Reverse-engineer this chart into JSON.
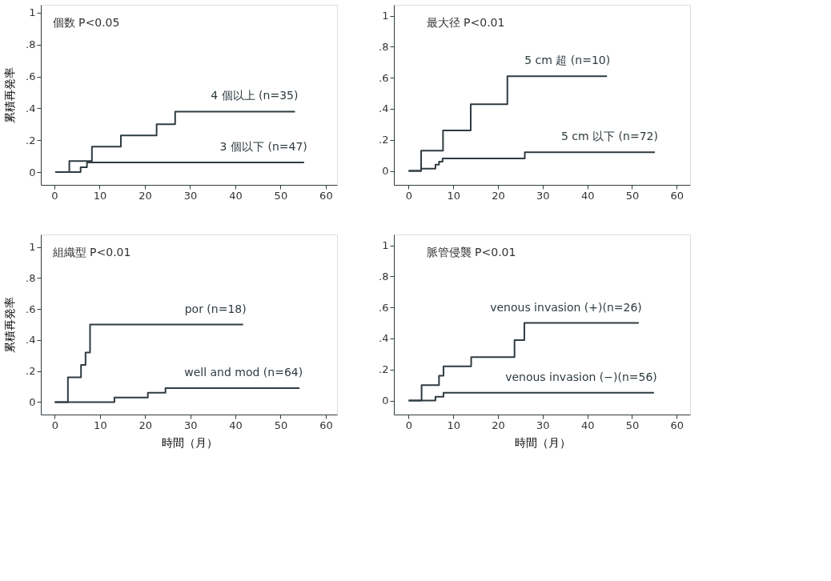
{
  "chart_data": [
    {
      "type": "step",
      "title": "個数  P<0.05",
      "ylabel": "累積再発率",
      "xlim": [
        -3,
        62.5
      ],
      "ylim": [
        -0.08,
        1.05
      ],
      "xticks": [
        0,
        10,
        20,
        30,
        40,
        50,
        60
      ],
      "yticks": [
        0,
        {
          "value": 0.2,
          "label": ".2"
        },
        {
          "value": 0.4,
          "label": ".4"
        },
        {
          "value": 0.6,
          "label": ".6"
        },
        {
          "value": 0.8,
          "label": ".8"
        },
        1
      ],
      "grid": false,
      "legend": false,
      "marker": "none",
      "series": [
        {
          "name": "4 個以上 (n=35)",
          "color": "#2f3b40",
          "x": [
            0.2,
            3.3,
            8.3,
            14.7,
            22.6,
            26.7,
            53.2
          ],
          "values": [
            0,
            0.07,
            0.16,
            0.23,
            0.3,
            0.38,
            0.38
          ]
        },
        {
          "name": "3 個以下 (n=47)",
          "color": "#2f3b40",
          "x": [
            0.2,
            5.8,
            7.2,
            55.2
          ],
          "values": [
            0,
            0.03,
            0.06,
            0.06
          ]
        }
      ]
    },
    {
      "type": "step",
      "title": "最大径  P<0.01",
      "xlim": [
        -3.3,
        63
      ],
      "ylim": [
        -0.09,
        1.07
      ],
      "xticks": [
        0,
        10,
        20,
        30,
        40,
        50,
        60
      ],
      "yticks": [
        0,
        {
          "value": 0.2,
          "label": ".2"
        },
        {
          "value": 0.4,
          "label": ".4"
        },
        {
          "value": 0.6,
          "label": ".6"
        },
        {
          "value": 0.8,
          "label": ".8"
        },
        1
      ],
      "grid": false,
      "legend": false,
      "marker": "none",
      "series": [
        {
          "name": "5 cm 超 (n=10)",
          "color": "#2f3b40",
          "x": [
            0,
            2.8,
            7.7,
            13.9,
            22.1,
            44.4
          ],
          "values": [
            0,
            0.13,
            0.26,
            0.43,
            0.61,
            0.61
          ]
        },
        {
          "name": "5 cm 以下 (n=72)",
          "color": "#2f3b40",
          "x": [
            0,
            2.8,
            6.0,
            6.8,
            7.6,
            26.0,
            55.1
          ],
          "values": [
            0,
            0.015,
            0.04,
            0.06,
            0.08,
            0.12,
            0.12
          ]
        }
      ]
    },
    {
      "type": "step",
      "title": "組織型  P<0.01",
      "ylabel": "累積再発率",
      "xlabel": "時間（月）",
      "xlim": [
        -3.1,
        62.5
      ],
      "ylim": [
        -0.08,
        1.08
      ],
      "xticks": [
        0,
        10,
        20,
        30,
        40,
        50,
        60
      ],
      "yticks": [
        0,
        {
          "value": 0.2,
          "label": ".2"
        },
        {
          "value": 0.4,
          "label": ".4"
        },
        {
          "value": 0.6,
          "label": ".6"
        },
        {
          "value": 0.8,
          "label": ".8"
        },
        1
      ],
      "grid": false,
      "legend": false,
      "marker": "none",
      "series": [
        {
          "name": "por (n=18)",
          "color": "#2f3b40",
          "x": [
            0,
            2.9,
            5.8,
            6.8,
            7.8,
            41.7
          ],
          "values": [
            0,
            0.16,
            0.24,
            0.32,
            0.5,
            0.5
          ]
        },
        {
          "name": "well and mod (n=64)",
          "color": "#2f3b40",
          "x": [
            0,
            13.2,
            20.6,
            24.5,
            54.2
          ],
          "values": [
            0,
            0.03,
            0.06,
            0.09,
            0.09
          ]
        }
      ]
    },
    {
      "type": "step",
      "title": "脈管侵襲  P<0.01",
      "xlabel": "時間（月）",
      "xlim": [
        -3.3,
        63
      ],
      "ylim": [
        -0.09,
        1.07
      ],
      "xticks": [
        0,
        10,
        20,
        30,
        40,
        50,
        60
      ],
      "yticks": [
        0,
        {
          "value": 0.2,
          "label": ".2"
        },
        {
          "value": 0.4,
          "label": ".4"
        },
        {
          "value": 0.6,
          "label": ".6"
        },
        {
          "value": 0.8,
          "label": ".8"
        },
        1
      ],
      "grid": false,
      "legend": false,
      "marker": "none",
      "series": [
        {
          "name": "venous invasion (+)(n=26)",
          "color": "#2f3b40",
          "x": [
            0,
            2.9,
            6.8,
            7.8,
            14.0,
            23.7,
            25.9,
            51.5
          ],
          "values": [
            0,
            0.1,
            0.16,
            0.22,
            0.28,
            0.39,
            0.5,
            0.5
          ]
        },
        {
          "name": "venous invasion (−)(n=56)",
          "color": "#2f3b40",
          "x": [
            0,
            6.0,
            7.8,
            54.9
          ],
          "values": [
            0,
            0.025,
            0.05,
            0.05
          ]
        }
      ]
    }
  ]
}
